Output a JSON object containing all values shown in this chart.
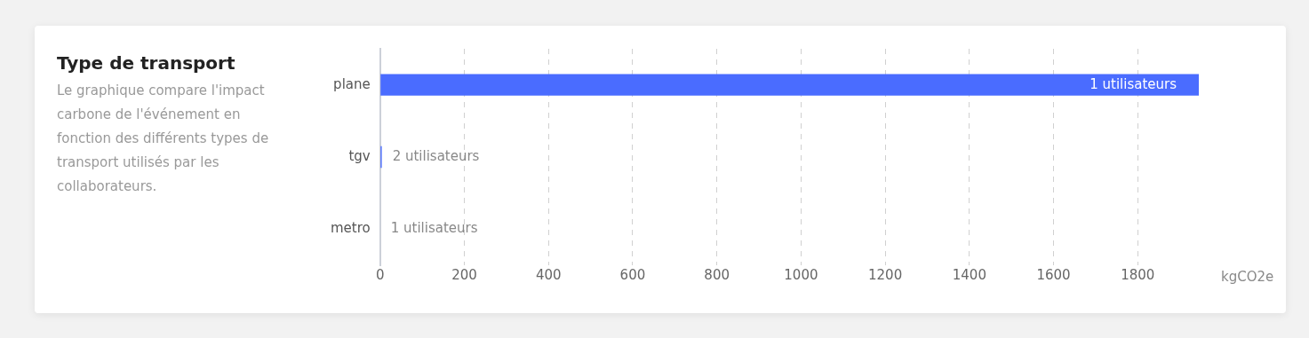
{
  "chart_data": {
    "type": "bar",
    "orientation": "horizontal",
    "title": "Type de transport",
    "subtitle": "Le graphique compare l'impact carbone de l'événement en fonction des différents types de transport utilisés par les collaborateurs.",
    "xlabel": "kgCO2e",
    "categories": [
      "plane",
      "tgv",
      "metro"
    ],
    "series": [
      {
        "color": "#4a6cff",
        "values": [
          1945,
          4,
          0
        ]
      }
    ],
    "annotations": [
      {
        "text": "1 utilisateurs",
        "x": 1945,
        "y": "plane"
      },
      {
        "text": "2 utilisateurs",
        "x": 4,
        "y": "tgv"
      },
      {
        "text": "1 utilisateurs",
        "x": 0,
        "y": "metro"
      }
    ],
    "xlim": [
      0,
      1945
    ],
    "xticks": [
      0,
      200,
      400,
      600,
      800,
      1000,
      1200,
      1400,
      1600,
      1800
    ],
    "grid": "x",
    "legend": false
  }
}
